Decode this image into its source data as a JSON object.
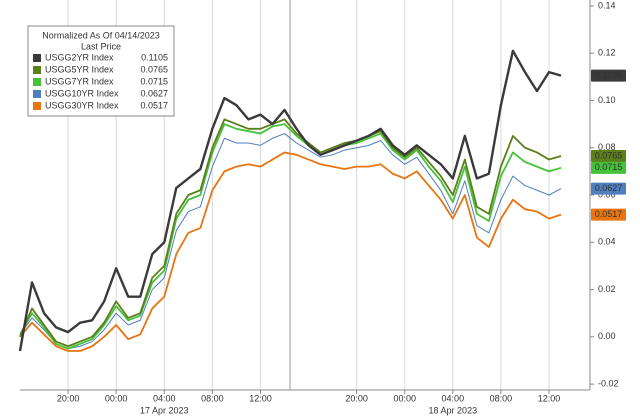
{
  "chart_data": {
    "type": "line",
    "title": "Normalized As Of 04/14/2023",
    "subtitle": "Last Price",
    "categories": [
      null,
      null,
      null,
      null,
      "20:00",
      null,
      null,
      null,
      "00:00",
      null,
      null,
      null,
      "04:00",
      null,
      null,
      null,
      "08:00",
      null,
      null,
      null,
      "12:00",
      null,
      null,
      null,
      null,
      null,
      null,
      null,
      "20:00",
      null,
      null,
      null,
      "00:00",
      null,
      null,
      null,
      "04:00",
      null,
      null,
      null,
      "08:00",
      null,
      null,
      null,
      "12:00",
      null
    ],
    "date_labels": [
      "17 Apr 2023",
      "18 Apr 2023"
    ],
    "ylim": [
      -0.0225,
      0.1425
    ],
    "yticks": [
      {
        "value": -0.02,
        "label": "-0.02"
      },
      {
        "value": 0,
        "label": "0.00"
      },
      0.02,
      0.04,
      0.06,
      0.08,
      {
        "value": 0.1,
        "label": "0.10"
      },
      0.12,
      0.14
    ],
    "grid": true,
    "legend": "upper left",
    "series": [
      {
        "name": "USGG2YR Index",
        "color": "#3a3a3a",
        "values": [
          -0.006,
          0.023,
          0.01,
          0.004,
          0.002,
          0.006,
          0.007,
          0.015,
          0.029,
          0.017,
          0.017,
          0.035,
          0.04,
          0.063,
          0.067,
          0.071,
          0.088,
          0.101,
          0.098,
          0.092,
          0.094,
          0.09,
          0.096,
          0.088,
          0.081,
          0.077,
          0.079,
          0.081,
          0.083,
          0.085,
          0.088,
          0.081,
          0.077,
          0.081,
          0.077,
          0.073,
          0.067,
          0.085,
          0.067,
          0.069,
          0.098,
          0.121,
          0.112,
          0.104,
          0.112,
          0.1105
        ]
      },
      {
        "name": "USGG5YR Index",
        "color": "#5b7f1a",
        "values": [
          0.0,
          0.012,
          0.005,
          -0.002,
          -0.004,
          -0.002,
          0.0,
          0.006,
          0.015,
          0.008,
          0.01,
          0.025,
          0.03,
          0.052,
          0.06,
          0.062,
          0.08,
          0.092,
          0.09,
          0.088,
          0.088,
          0.09,
          0.092,
          0.086,
          0.082,
          0.078,
          0.08,
          0.082,
          0.083,
          0.085,
          0.087,
          0.08,
          0.076,
          0.08,
          0.074,
          0.068,
          0.06,
          0.075,
          0.055,
          0.052,
          0.072,
          0.085,
          0.08,
          0.078,
          0.075,
          0.0765
        ]
      },
      {
        "name": "USGG7YR Index",
        "color": "#46c23a",
        "values": [
          0.001,
          0.01,
          0.004,
          -0.003,
          -0.005,
          -0.003,
          -0.001,
          0.005,
          0.013,
          0.007,
          0.009,
          0.023,
          0.028,
          0.05,
          0.058,
          0.06,
          0.078,
          0.09,
          0.088,
          0.087,
          0.086,
          0.089,
          0.09,
          0.085,
          0.081,
          0.077,
          0.079,
          0.081,
          0.082,
          0.084,
          0.086,
          0.079,
          0.075,
          0.079,
          0.072,
          0.066,
          0.057,
          0.072,
          0.052,
          0.049,
          0.068,
          0.078,
          0.074,
          0.072,
          0.07,
          0.0715
        ]
      },
      {
        "name": "USGG10YR Index",
        "color": "#4f7fbf",
        "values": [
          0.001,
          0.008,
          0.003,
          -0.003,
          -0.005,
          -0.004,
          -0.002,
          0.003,
          0.01,
          0.005,
          0.007,
          0.02,
          0.025,
          0.045,
          0.053,
          0.055,
          0.072,
          0.084,
          0.082,
          0.082,
          0.081,
          0.084,
          0.086,
          0.082,
          0.079,
          0.076,
          0.077,
          0.079,
          0.08,
          0.081,
          0.083,
          0.077,
          0.073,
          0.076,
          0.069,
          0.062,
          0.052,
          0.066,
          0.047,
          0.044,
          0.058,
          0.068,
          0.064,
          0.062,
          0.06,
          0.0627
        ]
      },
      {
        "name": "USGG30YR Index",
        "color": "#e87511",
        "values": [
          0.0,
          0.006,
          0.001,
          -0.004,
          -0.006,
          -0.006,
          -0.004,
          0.0,
          0.005,
          -0.001,
          0.001,
          0.012,
          0.017,
          0.035,
          0.044,
          0.046,
          0.062,
          0.07,
          0.072,
          0.073,
          0.072,
          0.075,
          0.078,
          0.077,
          0.075,
          0.073,
          0.072,
          0.071,
          0.072,
          0.072,
          0.073,
          0.069,
          0.067,
          0.07,
          0.064,
          0.058,
          0.05,
          0.06,
          0.042,
          0.038,
          0.05,
          0.058,
          0.054,
          0.053,
          0.05,
          0.0517
        ]
      }
    ]
  }
}
